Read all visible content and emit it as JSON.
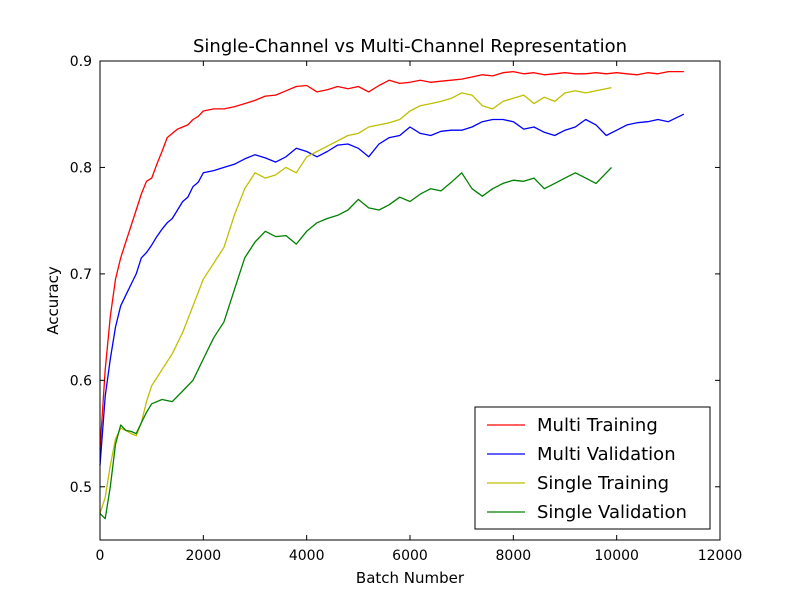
{
  "chart_data": {
    "type": "line",
    "title": "Single-Channel vs Multi-Channel Representation",
    "xlabel": "Batch Number",
    "ylabel": "Accuracy",
    "xlim": [
      0,
      12000
    ],
    "ylim": [
      0.45,
      0.9
    ],
    "xticks": [
      0,
      2000,
      4000,
      6000,
      8000,
      10000,
      12000
    ],
    "xtick_labels": [
      "0",
      "2000",
      "4000",
      "6000",
      "8000",
      "10000",
      "12000"
    ],
    "yticks": [
      0.5,
      0.6,
      0.7,
      0.8,
      0.9
    ],
    "ytick_labels": [
      "0.5",
      "0.6",
      "0.7",
      "0.8",
      "0.9"
    ],
    "grid": false,
    "legend_position": "lower-right",
    "series": [
      {
        "name": "Multi Training",
        "color": "#ff0000",
        "x": [
          0,
          100,
          200,
          300,
          400,
          500,
          600,
          700,
          800,
          900,
          1000,
          1100,
          1200,
          1300,
          1400,
          1500,
          1600,
          1700,
          1800,
          1900,
          2000,
          2200,
          2400,
          2600,
          2800,
          3000,
          3200,
          3400,
          3600,
          3800,
          4000,
          4200,
          4400,
          4600,
          4800,
          5000,
          5200,
          5400,
          5600,
          5800,
          6000,
          6200,
          6400,
          6600,
          6800,
          7000,
          7200,
          7400,
          7600,
          7800,
          8000,
          8200,
          8400,
          8600,
          8800,
          9000,
          9200,
          9400,
          9600,
          9800,
          10000,
          10200,
          10400,
          10600,
          10800,
          11000,
          11300
        ],
        "y": [
          0.535,
          0.61,
          0.66,
          0.695,
          0.715,
          0.73,
          0.745,
          0.76,
          0.775,
          0.787,
          0.79,
          0.803,
          0.815,
          0.828,
          0.832,
          0.836,
          0.838,
          0.84,
          0.845,
          0.848,
          0.853,
          0.855,
          0.855,
          0.857,
          0.86,
          0.863,
          0.867,
          0.868,
          0.872,
          0.876,
          0.877,
          0.871,
          0.873,
          0.876,
          0.874,
          0.876,
          0.871,
          0.877,
          0.882,
          0.879,
          0.88,
          0.882,
          0.88,
          0.881,
          0.882,
          0.883,
          0.885,
          0.887,
          0.886,
          0.889,
          0.89,
          0.888,
          0.889,
          0.887,
          0.888,
          0.889,
          0.888,
          0.888,
          0.889,
          0.888,
          0.889,
          0.888,
          0.887,
          0.889,
          0.888,
          0.89,
          0.89
        ]
      },
      {
        "name": "Multi Validation",
        "color": "#0000ff",
        "x": [
          0,
          100,
          200,
          300,
          400,
          500,
          600,
          700,
          800,
          900,
          1000,
          1100,
          1200,
          1300,
          1400,
          1500,
          1600,
          1700,
          1800,
          1900,
          2000,
          2200,
          2400,
          2600,
          2800,
          3000,
          3200,
          3400,
          3600,
          3800,
          4000,
          4200,
          4400,
          4600,
          4800,
          5000,
          5200,
          5400,
          5600,
          5800,
          6000,
          6200,
          6400,
          6600,
          6800,
          7000,
          7200,
          7400,
          7600,
          7800,
          8000,
          8200,
          8400,
          8600,
          8800,
          9000,
          9200,
          9400,
          9600,
          9800,
          10000,
          10200,
          10400,
          10600,
          10800,
          11000,
          11300
        ],
        "y": [
          0.52,
          0.585,
          0.62,
          0.65,
          0.67,
          0.68,
          0.69,
          0.7,
          0.715,
          0.72,
          0.727,
          0.735,
          0.742,
          0.748,
          0.752,
          0.76,
          0.768,
          0.772,
          0.782,
          0.786,
          0.795,
          0.797,
          0.8,
          0.803,
          0.808,
          0.812,
          0.809,
          0.805,
          0.81,
          0.818,
          0.815,
          0.81,
          0.815,
          0.821,
          0.822,
          0.818,
          0.81,
          0.822,
          0.828,
          0.83,
          0.838,
          0.832,
          0.83,
          0.834,
          0.835,
          0.835,
          0.838,
          0.843,
          0.845,
          0.845,
          0.843,
          0.836,
          0.838,
          0.833,
          0.83,
          0.835,
          0.838,
          0.845,
          0.84,
          0.83,
          0.835,
          0.84,
          0.842,
          0.843,
          0.845,
          0.843,
          0.85
        ]
      },
      {
        "name": "Single Training",
        "color": "#bfbf00",
        "x": [
          0,
          100,
          200,
          300,
          400,
          500,
          600,
          700,
          800,
          900,
          1000,
          1200,
          1400,
          1600,
          1800,
          2000,
          2200,
          2400,
          2600,
          2800,
          3000,
          3200,
          3400,
          3600,
          3800,
          4000,
          4200,
          4400,
          4600,
          4800,
          5000,
          5200,
          5400,
          5600,
          5800,
          6000,
          6200,
          6400,
          6600,
          6800,
          7000,
          7200,
          7400,
          7600,
          7800,
          8000,
          8200,
          8400,
          8600,
          8800,
          9000,
          9200,
          9400,
          9600,
          9900
        ],
        "y": [
          0.475,
          0.49,
          0.52,
          0.545,
          0.555,
          0.553,
          0.55,
          0.548,
          0.56,
          0.58,
          0.595,
          0.61,
          0.625,
          0.645,
          0.67,
          0.695,
          0.71,
          0.725,
          0.755,
          0.78,
          0.795,
          0.79,
          0.793,
          0.8,
          0.795,
          0.81,
          0.815,
          0.82,
          0.825,
          0.83,
          0.832,
          0.838,
          0.84,
          0.842,
          0.845,
          0.853,
          0.858,
          0.86,
          0.862,
          0.865,
          0.87,
          0.868,
          0.858,
          0.855,
          0.862,
          0.865,
          0.868,
          0.86,
          0.866,
          0.862,
          0.87,
          0.872,
          0.87,
          0.872,
          0.875
        ]
      },
      {
        "name": "Single Validation",
        "color": "#008000",
        "x": [
          0,
          100,
          200,
          300,
          400,
          500,
          600,
          700,
          800,
          900,
          1000,
          1200,
          1400,
          1600,
          1800,
          2000,
          2200,
          2400,
          2600,
          2800,
          3000,
          3200,
          3400,
          3600,
          3800,
          4000,
          4200,
          4400,
          4600,
          4800,
          5000,
          5200,
          5400,
          5600,
          5800,
          6000,
          6200,
          6400,
          6600,
          6800,
          7000,
          7200,
          7400,
          7600,
          7800,
          8000,
          8200,
          8400,
          8600,
          8800,
          9000,
          9200,
          9400,
          9600,
          9900
        ],
        "y": [
          0.475,
          0.47,
          0.5,
          0.54,
          0.558,
          0.553,
          0.552,
          0.55,
          0.56,
          0.57,
          0.578,
          0.582,
          0.58,
          0.59,
          0.6,
          0.62,
          0.64,
          0.655,
          0.685,
          0.715,
          0.73,
          0.74,
          0.735,
          0.736,
          0.728,
          0.74,
          0.748,
          0.752,
          0.755,
          0.76,
          0.77,
          0.762,
          0.76,
          0.765,
          0.772,
          0.768,
          0.775,
          0.78,
          0.778,
          0.786,
          0.795,
          0.78,
          0.773,
          0.78,
          0.785,
          0.788,
          0.787,
          0.79,
          0.78,
          0.785,
          0.79,
          0.795,
          0.79,
          0.785,
          0.8
        ]
      }
    ]
  }
}
